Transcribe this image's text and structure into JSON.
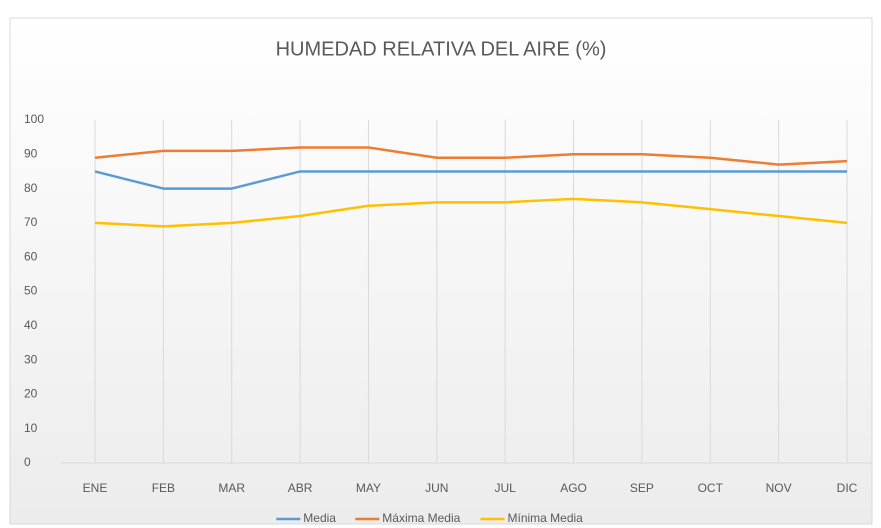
{
  "chart_data": {
    "type": "line",
    "title": "HUMEDAD RELATIVA DEL AIRE (%)",
    "categories": [
      "ENE",
      "FEB",
      "MAR",
      "ABR",
      "MAY",
      "JUN",
      "JUL",
      "AGO",
      "SEP",
      "OCT",
      "NOV",
      "DIC"
    ],
    "series": [
      {
        "name": "Media",
        "color": "#5b9bd5",
        "values": [
          85,
          80,
          80,
          85,
          85,
          85,
          85,
          85,
          85,
          85,
          85,
          85
        ]
      },
      {
        "name": "Máxima Media",
        "color": "#ed7d31",
        "values": [
          89,
          91,
          91,
          92,
          92,
          89,
          89,
          90,
          90,
          89,
          87,
          88
        ]
      },
      {
        "name": "Mínima Media",
        "color": "#ffc000",
        "values": [
          70,
          69,
          70,
          72,
          75,
          76,
          76,
          77,
          76,
          74,
          72,
          70
        ]
      }
    ],
    "ylim": [
      0,
      100
    ],
    "yticks": [
      0,
      10,
      20,
      30,
      40,
      50,
      60,
      70,
      80,
      90,
      100
    ],
    "grid": "x",
    "legend": "bottom"
  }
}
